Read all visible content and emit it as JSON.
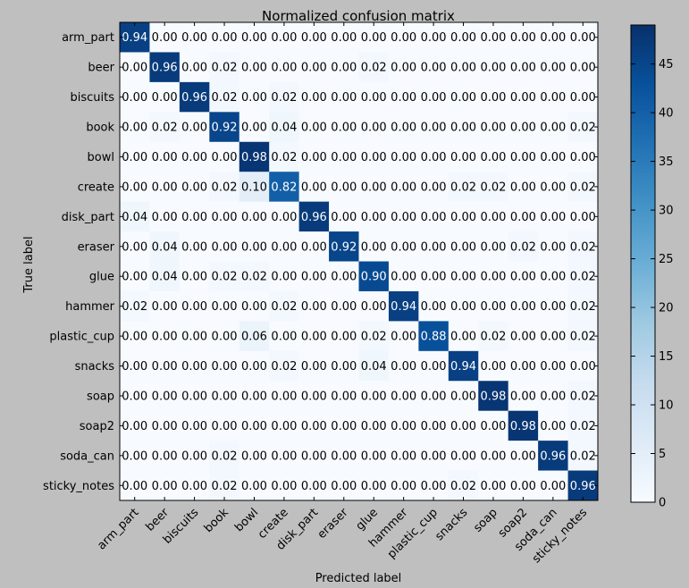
{
  "chart_data": {
    "type": "heatmap",
    "title": "Normalized confusion matrix",
    "xlabel": "Predicted label",
    "ylabel": "True label",
    "classes": [
      "arm_part",
      "beer",
      "biscuits",
      "book",
      "bowl",
      "create",
      "disk_part",
      "eraser",
      "glue",
      "hammer",
      "plastic_cup",
      "snacks",
      "soap",
      "soap2",
      "soda_can",
      "sticky_notes"
    ],
    "values": [
      [
        0.94,
        0.0,
        0.0,
        0.0,
        0.0,
        0.0,
        0.0,
        0.0,
        0.0,
        0.0,
        0.0,
        0.0,
        0.0,
        0.0,
        0.0,
        0.0
      ],
      [
        0.0,
        0.96,
        0.0,
        0.02,
        0.0,
        0.0,
        0.0,
        0.0,
        0.02,
        0.0,
        0.0,
        0.0,
        0.0,
        0.0,
        0.0,
        0.0
      ],
      [
        0.0,
        0.0,
        0.96,
        0.02,
        0.0,
        0.02,
        0.0,
        0.0,
        0.0,
        0.0,
        0.0,
        0.0,
        0.0,
        0.0,
        0.0,
        0.0
      ],
      [
        0.0,
        0.02,
        0.0,
        0.92,
        0.0,
        0.04,
        0.0,
        0.0,
        0.0,
        0.0,
        0.0,
        0.0,
        0.0,
        0.0,
        0.0,
        0.02
      ],
      [
        0.0,
        0.0,
        0.0,
        0.0,
        0.98,
        0.02,
        0.0,
        0.0,
        0.0,
        0.0,
        0.0,
        0.0,
        0.0,
        0.0,
        0.0,
        0.0
      ],
      [
        0.0,
        0.0,
        0.0,
        0.02,
        0.1,
        0.82,
        0.0,
        0.0,
        0.0,
        0.0,
        0.0,
        0.02,
        0.02,
        0.0,
        0.0,
        0.02
      ],
      [
        0.04,
        0.0,
        0.0,
        0.0,
        0.0,
        0.0,
        0.96,
        0.0,
        0.0,
        0.0,
        0.0,
        0.0,
        0.0,
        0.0,
        0.0,
        0.0
      ],
      [
        0.0,
        0.04,
        0.0,
        0.0,
        0.0,
        0.0,
        0.0,
        0.92,
        0.0,
        0.0,
        0.0,
        0.0,
        0.0,
        0.02,
        0.0,
        0.02
      ],
      [
        0.0,
        0.04,
        0.0,
        0.02,
        0.02,
        0.0,
        0.0,
        0.0,
        0.9,
        0.0,
        0.0,
        0.0,
        0.0,
        0.0,
        0.0,
        0.02
      ],
      [
        0.02,
        0.0,
        0.0,
        0.0,
        0.0,
        0.02,
        0.0,
        0.0,
        0.0,
        0.94,
        0.0,
        0.0,
        0.0,
        0.0,
        0.0,
        0.02
      ],
      [
        0.0,
        0.0,
        0.0,
        0.0,
        0.06,
        0.0,
        0.0,
        0.0,
        0.02,
        0.0,
        0.88,
        0.0,
        0.02,
        0.0,
        0.0,
        0.02
      ],
      [
        0.0,
        0.0,
        0.0,
        0.0,
        0.0,
        0.02,
        0.0,
        0.0,
        0.04,
        0.0,
        0.0,
        0.94,
        0.0,
        0.0,
        0.0,
        0.0
      ],
      [
        0.0,
        0.0,
        0.0,
        0.0,
        0.0,
        0.0,
        0.0,
        0.0,
        0.0,
        0.0,
        0.0,
        0.0,
        0.98,
        0.0,
        0.0,
        0.02
      ],
      [
        0.0,
        0.0,
        0.0,
        0.0,
        0.0,
        0.0,
        0.0,
        0.0,
        0.0,
        0.0,
        0.0,
        0.0,
        0.0,
        0.98,
        0.0,
        0.02
      ],
      [
        0.0,
        0.0,
        0.0,
        0.02,
        0.0,
        0.0,
        0.0,
        0.0,
        0.0,
        0.0,
        0.0,
        0.0,
        0.0,
        0.0,
        0.96,
        0.02
      ],
      [
        0.0,
        0.0,
        0.0,
        0.02,
        0.0,
        0.0,
        0.0,
        0.0,
        0.0,
        0.0,
        0.0,
        0.02,
        0.0,
        0.0,
        0.0,
        0.96
      ]
    ],
    "colorbar": {
      "range": [
        0,
        49
      ],
      "ticks": [
        0,
        5,
        10,
        15,
        20,
        25,
        30,
        35,
        40,
        45
      ]
    },
    "colormap": "Blues",
    "colors": {
      "background": "#bfbfbf",
      "text_dark": "#000000",
      "text_light": "#ffffff",
      "cmap_low": "#f7fbff",
      "cmap_high": "#08306b"
    },
    "grid": false
  }
}
